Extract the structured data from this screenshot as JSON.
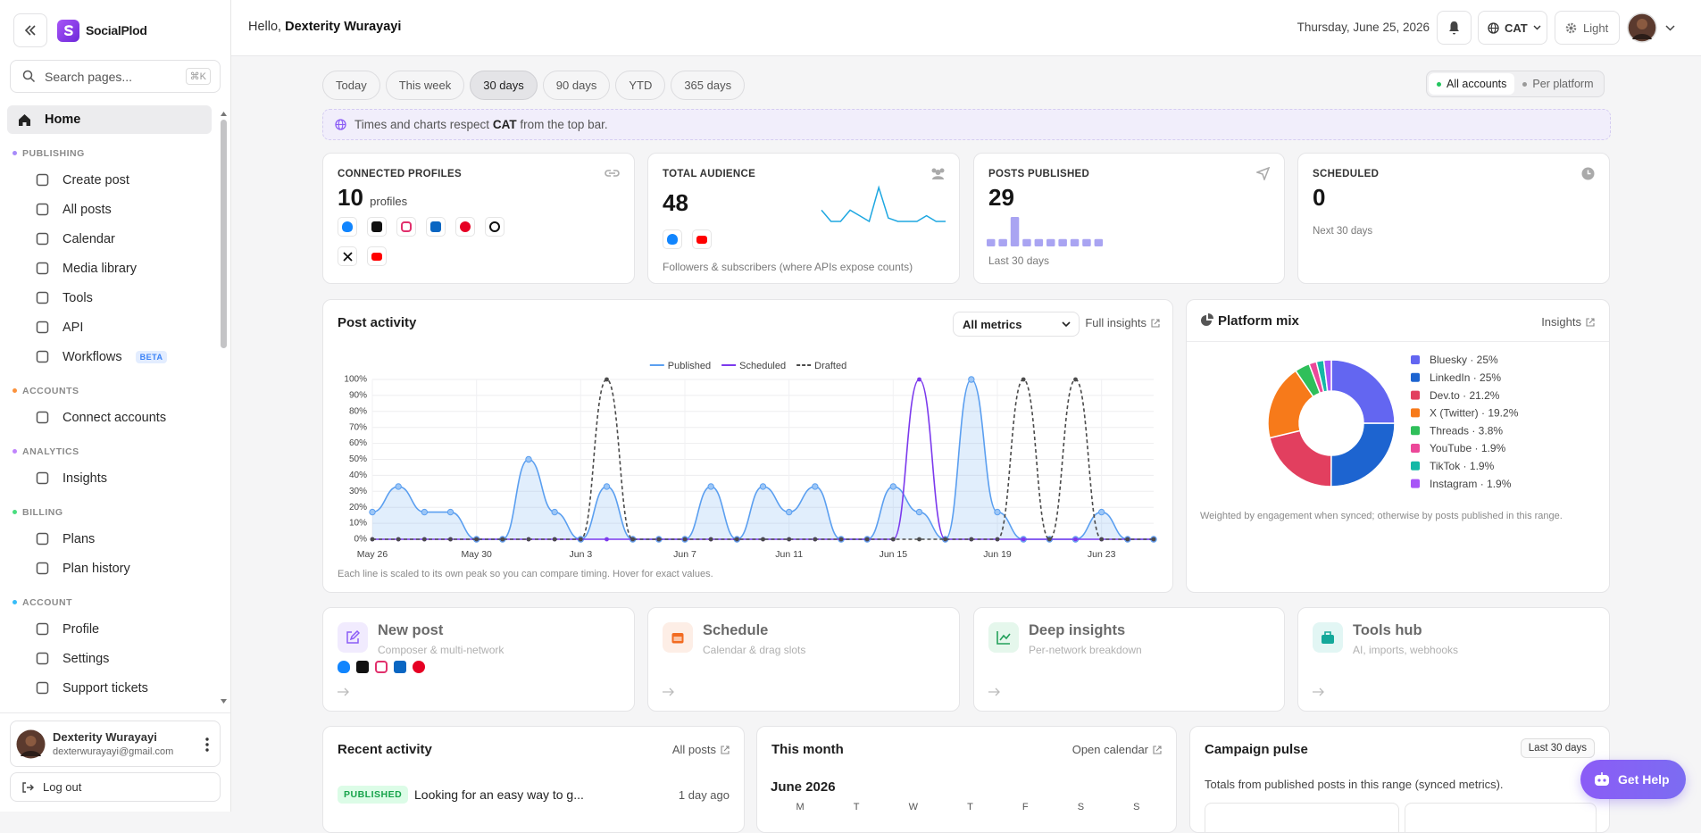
{
  "sidebar": {
    "brand": "SocialPlod",
    "search_placeholder": "Search pages...",
    "search_shortcut": "⌘K",
    "home": "Home",
    "sections": [
      {
        "title": "PUBLISHING",
        "color": "#a78bfa",
        "items": [
          {
            "label": "Create post"
          },
          {
            "label": "All posts"
          },
          {
            "label": "Calendar"
          },
          {
            "label": "Media library"
          },
          {
            "label": "Tools"
          },
          {
            "label": "API"
          },
          {
            "label": "Workflows",
            "badge": "BETA"
          }
        ]
      },
      {
        "title": "ACCOUNTS",
        "color": "#fb923c",
        "items": [
          {
            "label": "Connect accounts"
          }
        ]
      },
      {
        "title": "ANALYTICS",
        "color": "#c084fc",
        "items": [
          {
            "label": "Insights"
          }
        ]
      },
      {
        "title": "BILLING",
        "color": "#4ade80",
        "items": [
          {
            "label": "Plans"
          },
          {
            "label": "Plan history"
          }
        ]
      },
      {
        "title": "ACCOUNT",
        "color": "#38bdf8",
        "items": [
          {
            "label": "Profile"
          },
          {
            "label": "Settings"
          },
          {
            "label": "Support tickets"
          }
        ]
      }
    ],
    "user": {
      "name": "Dexterity Wurayayi",
      "email": "dexterwurayayi@gmail.com"
    },
    "logout": "Log out"
  },
  "header": {
    "greeting": "Hello,",
    "name": "Dexterity Wurayayi",
    "date": "Thursday, June 25, 2026",
    "timezone": "CAT",
    "theme": "Light"
  },
  "ranges": [
    {
      "label": "Today"
    },
    {
      "label": "This week"
    },
    {
      "label": "30 days",
      "active": true
    },
    {
      "label": "90 days"
    },
    {
      "label": "YTD"
    },
    {
      "label": "365 days"
    }
  ],
  "scope": [
    {
      "label": "All accounts",
      "active": true
    },
    {
      "label": "Per platform"
    }
  ],
  "notice": {
    "before": "Times and charts respect",
    "emphasis": "CAT",
    "after": "from the top bar."
  },
  "stats": [
    {
      "label": "CONNECTED PROFILES",
      "value": 10,
      "unit": "profiles"
    },
    {
      "label": "TOTAL AUDIENCE",
      "value": 48,
      "note": "Followers & subscribers (where APIs expose counts)"
    },
    {
      "label": "POSTS PUBLISHED",
      "value": 29,
      "note": "Last 30 days"
    },
    {
      "label": "SCHEDULED",
      "value": 0,
      "note": "Next 30 days"
    }
  ],
  "chart_data": [
    {
      "type": "line",
      "title": "Post activity",
      "control": "All metrics",
      "link": "Full insights",
      "categories": [
        "May 26",
        null,
        null,
        null,
        "May 30",
        null,
        null,
        null,
        "Jun 3",
        null,
        null,
        null,
        "Jun 7",
        null,
        null,
        null,
        "Jun 11",
        null,
        null,
        null,
        "Jun 15",
        null,
        null,
        null,
        "Jun 19",
        null,
        null,
        null,
        "Jun 23",
        null,
        null
      ],
      "series": [
        {
          "name": "Published",
          "color": "#5b9ff0",
          "values": [
            17,
            33,
            17,
            17,
            0,
            0,
            50,
            17,
            0,
            33,
            0,
            0,
            0,
            33,
            0,
            33,
            17,
            33,
            0,
            0,
            33,
            17,
            0,
            100,
            17,
            0,
            0,
            0,
            17,
            0,
            0
          ]
        },
        {
          "name": "Scheduled",
          "color": "#7c3aed",
          "values": [
            0,
            0,
            0,
            0,
            0,
            0,
            0,
            0,
            0,
            0,
            0,
            0,
            0,
            0,
            0,
            0,
            0,
            0,
            0,
            0,
            0,
            100,
            0,
            0,
            0,
            0,
            0,
            0,
            0,
            0,
            0
          ]
        },
        {
          "name": "Drafted",
          "color": "#4b4b4b",
          "dashed": true,
          "values": [
            0,
            0,
            0,
            0,
            0,
            0,
            0,
            0,
            0,
            100,
            0,
            0,
            0,
            0,
            0,
            0,
            0,
            0,
            0,
            0,
            0,
            0,
            0,
            0,
            0,
            100,
            0,
            100,
            0,
            0,
            0
          ]
        }
      ],
      "ylim": [
        0,
        100
      ],
      "yticks": [
        {
          "value": 0,
          "label": "0%"
        },
        {
          "value": 10,
          "label": "10%"
        },
        {
          "value": 20,
          "label": "20%"
        },
        {
          "value": 30,
          "label": "30%"
        },
        {
          "value": 40,
          "label": "40%"
        },
        {
          "value": 50,
          "label": "50%"
        },
        {
          "value": 60,
          "label": "60%"
        },
        {
          "value": 70,
          "label": "70%"
        },
        {
          "value": 80,
          "label": "80%"
        },
        {
          "value": 90,
          "label": "90%"
        },
        {
          "value": 100,
          "label": "100%"
        }
      ],
      "grid": true,
      "note": "Each line is scaled to its own peak so you can compare timing. Hover for exact values."
    },
    {
      "type": "line",
      "values": [
        10,
        0,
        0,
        10,
        5,
        0,
        30,
        3,
        0,
        0,
        0,
        5,
        0,
        0
      ],
      "color": "#1ea7e1"
    },
    {
      "type": "bar",
      "values": [
        1,
        1,
        4,
        1,
        1,
        1,
        1,
        1,
        1,
        1
      ],
      "color": "#a9a4f2"
    },
    {
      "type": "pie",
      "title": "Platform mix",
      "link": "Insights",
      "values": [
        25,
        25,
        21.2,
        19.2,
        3.8,
        1.9,
        1.9,
        1.9
      ],
      "value_labels": [
        "Bluesky · 25%",
        "LinkedIn · 25%",
        "Dev.to · 21.2%",
        "X (Twitter) · 19.2%",
        "Threads · 3.8%",
        "YouTube · 1.9%",
        "TikTok · 1.9%",
        "Instagram · 1.9%"
      ],
      "colors": [
        "#6366f1",
        "#1d64d0",
        "#e23f5f",
        "#f77a1a",
        "#2fbf5a",
        "#ec4899",
        "#14b8a6",
        "#a855f7"
      ],
      "note": "Weighted by engagement when synced; otherwise by posts published in this range."
    }
  ],
  "actions": [
    {
      "title": "New post",
      "subtitle": "Composer & multi-network"
    },
    {
      "title": "Schedule",
      "subtitle": "Calendar & drag slots"
    },
    {
      "title": "Deep insights",
      "subtitle": "Per-network breakdown"
    },
    {
      "title": "Tools hub",
      "subtitle": "AI, imports, webhooks"
    }
  ],
  "recent": {
    "title": "Recent activity",
    "link": "All posts",
    "items": [
      {
        "status": "PUBLISHED",
        "text": "Looking for an easy way to g...",
        "time": "1 day ago"
      }
    ]
  },
  "month": {
    "title": "This month",
    "link": "Open calendar",
    "heading": "June 2026",
    "weekdays": [
      "M",
      "T",
      "W",
      "T",
      "F",
      "S",
      "S"
    ]
  },
  "pulse": {
    "title": "Campaign pulse",
    "range": "Last 30 days",
    "text": "Totals from published posts in this range (synced metrics)."
  },
  "help": "Get Help"
}
